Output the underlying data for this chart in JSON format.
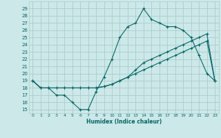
{
  "title": "",
  "xlabel": "Humidex (Indice chaleur)",
  "bg_color": "#cce8e8",
  "grid_color": "#aacccc",
  "line_color": "#006666",
  "xlim": [
    -0.5,
    23.5
  ],
  "ylim": [
    14.5,
    30.0
  ],
  "xticks": [
    0,
    1,
    2,
    3,
    4,
    5,
    6,
    7,
    8,
    9,
    10,
    11,
    12,
    13,
    14,
    15,
    16,
    17,
    18,
    19,
    20,
    21,
    22,
    23
  ],
  "yticks": [
    15,
    16,
    17,
    18,
    19,
    20,
    21,
    22,
    23,
    24,
    25,
    26,
    27,
    28,
    29
  ],
  "line1_x": [
    0,
    1,
    2,
    3,
    4,
    5,
    6,
    7,
    8,
    9,
    10,
    11,
    12,
    13,
    14,
    15,
    16,
    17,
    18,
    19,
    20,
    21,
    22,
    23
  ],
  "line1_y": [
    19,
    18,
    18,
    17,
    17,
    16,
    15,
    15,
    17.5,
    19.5,
    22,
    25,
    26.5,
    27,
    29,
    27.5,
    27,
    26.5,
    26.5,
    26,
    25,
    22.5,
    20,
    19
  ],
  "line2_x": [
    0,
    1,
    2,
    3,
    4,
    5,
    6,
    7,
    8,
    9,
    10,
    11,
    12,
    13,
    14,
    15,
    16,
    17,
    18,
    19,
    20,
    21,
    22,
    23
  ],
  "line2_y": [
    19,
    18.0,
    18.0,
    18.0,
    18.0,
    18.0,
    18.0,
    18.0,
    18.0,
    18.2,
    18.5,
    19.0,
    19.5,
    20.0,
    20.5,
    21.0,
    21.5,
    22.0,
    22.5,
    23.0,
    23.5,
    24.0,
    24.5,
    19
  ],
  "line3_x": [
    0,
    1,
    2,
    3,
    4,
    5,
    6,
    7,
    8,
    9,
    10,
    11,
    12,
    13,
    14,
    15,
    16,
    17,
    18,
    19,
    20,
    21,
    22,
    23
  ],
  "line3_y": [
    19,
    18.0,
    18.0,
    18.0,
    18.0,
    18.0,
    18.0,
    18.0,
    18.0,
    18.2,
    18.5,
    19.0,
    19.5,
    20.5,
    21.5,
    22.0,
    22.5,
    23.0,
    23.5,
    24.0,
    24.5,
    25.0,
    25.5,
    19
  ]
}
